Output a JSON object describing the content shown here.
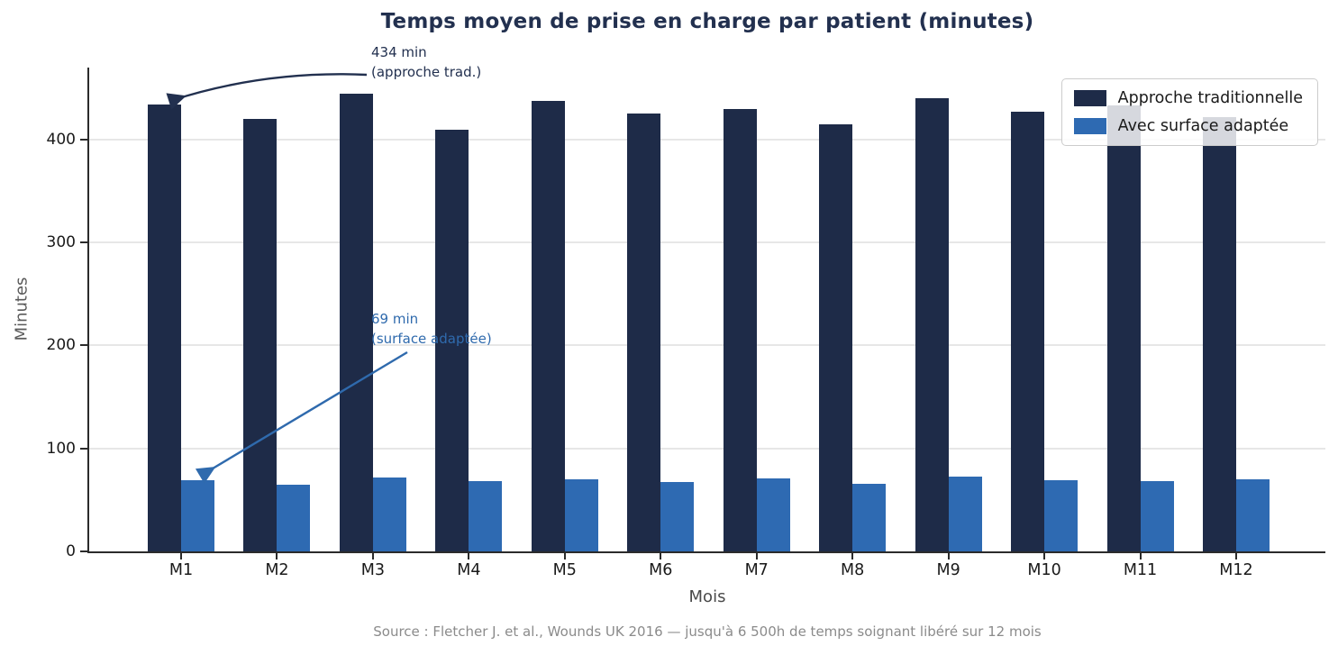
{
  "title": "Temps moyen de prise en charge par patient (minutes)",
  "axes": {
    "x_label": "Mois",
    "y_label": "Minutes"
  },
  "footer": {
    "text": "Source : Fletcher J. et al., Wounds UK 2016 — jusqu'à 6 500h de temps soignant libéré sur 12 mois"
  },
  "annotations": {
    "traditional": {
      "line1": "434 min",
      "line2": "(approche trad.)",
      "color": "#22304f"
    },
    "adapted": {
      "line1": "69 min",
      "line2": "(surface adaptée)",
      "color": "#2f6aad"
    }
  },
  "colors": {
    "traditional_bar": "#1e2b48",
    "adapted_bar": "#2e6ab2",
    "title": "#22304f",
    "grid": "#e7e7e7",
    "spine": "#2b2b2b"
  },
  "chart_data": {
    "type": "bar",
    "title": "Temps moyen de prise en charge par patient (minutes)",
    "xlabel": "Mois",
    "ylabel": "Minutes",
    "categories": [
      "M1",
      "M2",
      "M3",
      "M4",
      "M5",
      "M6",
      "M7",
      "M8",
      "M9",
      "M10",
      "M11",
      "M12"
    ],
    "series": [
      {
        "name": "Approche traditionnelle",
        "color": "#1e2b48",
        "values": [
          434,
          420,
          445,
          410,
          438,
          425,
          430,
          415,
          440,
          427,
          433,
          422
        ]
      },
      {
        "name": "Avec surface adaptée",
        "color": "#2e6ab2",
        "values": [
          69,
          65,
          72,
          68,
          70,
          67,
          71,
          66,
          73,
          69,
          68,
          70
        ]
      }
    ],
    "ylim": [
      0,
      470
    ],
    "yticks": [
      0,
      100,
      200,
      300,
      400
    ],
    "grid": true,
    "legend_position": "upper right",
    "annotations": [
      {
        "text": "434 min (approche trad.)",
        "series": "Approche traditionnelle",
        "category": "M1",
        "value": 434
      },
      {
        "text": "69 min (surface adaptée)",
        "series": "Avec surface adaptée",
        "category": "M1",
        "value": 69
      }
    ]
  }
}
